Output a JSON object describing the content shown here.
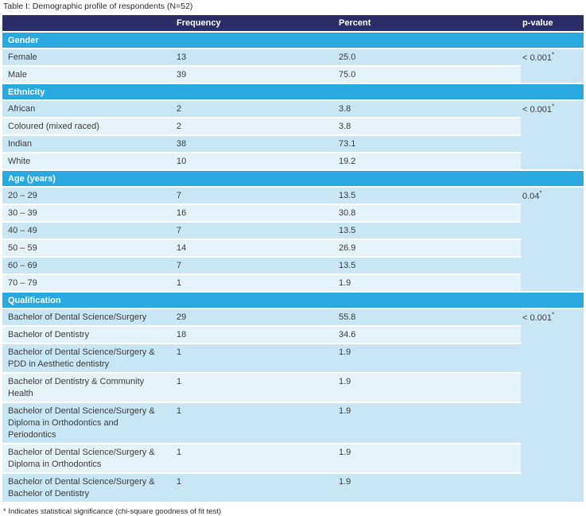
{
  "table": {
    "title": "Table I: Demographic profile of respondents (N=52)",
    "columns": {
      "label": "",
      "frequency": "Frequency",
      "percent": "Percent",
      "p_value": "p-value"
    },
    "sections": [
      {
        "name": "Gender",
        "p_value": "< 0.001",
        "p_flag": "*",
        "rows": [
          {
            "label": "Female",
            "frequency": "13",
            "percent": "25.0"
          },
          {
            "label": "Male",
            "frequency": "39",
            "percent": "75.0"
          }
        ]
      },
      {
        "name": "Ethnicity",
        "p_value": "< 0.001",
        "p_flag": "*",
        "rows": [
          {
            "label": "African",
            "frequency": "2",
            "percent": "3.8"
          },
          {
            "label": "Coloured (mixed raced)",
            "frequency": "2",
            "percent": "3.8"
          },
          {
            "label": "Indian",
            "frequency": "38",
            "percent": "73.1"
          },
          {
            "label": "White",
            "frequency": "10",
            "percent": "19.2"
          }
        ]
      },
      {
        "name": "Age (years)",
        "p_value": "0.04",
        "p_flag": "*",
        "rows": [
          {
            "label": "20 – 29",
            "frequency": "7",
            "percent": "13.5"
          },
          {
            "label": "30 – 39",
            "frequency": "16",
            "percent": "30.8"
          },
          {
            "label": "40 – 49",
            "frequency": "7",
            "percent": "13.5"
          },
          {
            "label": "50 – 59",
            "frequency": "14",
            "percent": "26.9"
          },
          {
            "label": "60 – 69",
            "frequency": "7",
            "percent": "13.5"
          },
          {
            "label": "70 – 79",
            "frequency": "1",
            "percent": "1.9"
          }
        ]
      },
      {
        "name": "Qualification",
        "p_value": "< 0.001",
        "p_flag": "*",
        "rows": [
          {
            "label": "Bachelor of Dental Science/Surgery",
            "frequency": "29",
            "percent": "55.8"
          },
          {
            "label": "Bachelor of Dentistry",
            "frequency": "18",
            "percent": "34.6"
          },
          {
            "label": "Bachelor of Dental Science/Surgery & PDD in Aesthetic dentistry",
            "frequency": "1",
            "percent": "1.9"
          },
          {
            "label": "Bachelor of Dentistry & Community Health",
            "frequency": "1",
            "percent": "1.9"
          },
          {
            "label": "Bachelor of Dental Science/Surgery & Diploma in Orthodontics and Periodontics",
            "frequency": "1",
            "percent": "1.9"
          },
          {
            "label": "Bachelor of Dental Science/Surgery & Diploma in Orthodontics",
            "frequency": "1",
            "percent": "1.9"
          },
          {
            "label": "Bachelor of Dental Science/Surgery & Bachelor of Dentistry",
            "frequency": "1",
            "percent": "1.9"
          }
        ]
      }
    ],
    "footnote": "* Indicates statistical significance (chi-square goodness of fit test)"
  },
  "colors": {
    "header_bg": "#2a2d66",
    "section_bg": "#29a9e0",
    "row_dark": "#c9e6f4",
    "row_light": "#e4f3fa",
    "header_text": "#ffffff",
    "body_text": "#3b3b3b"
  }
}
